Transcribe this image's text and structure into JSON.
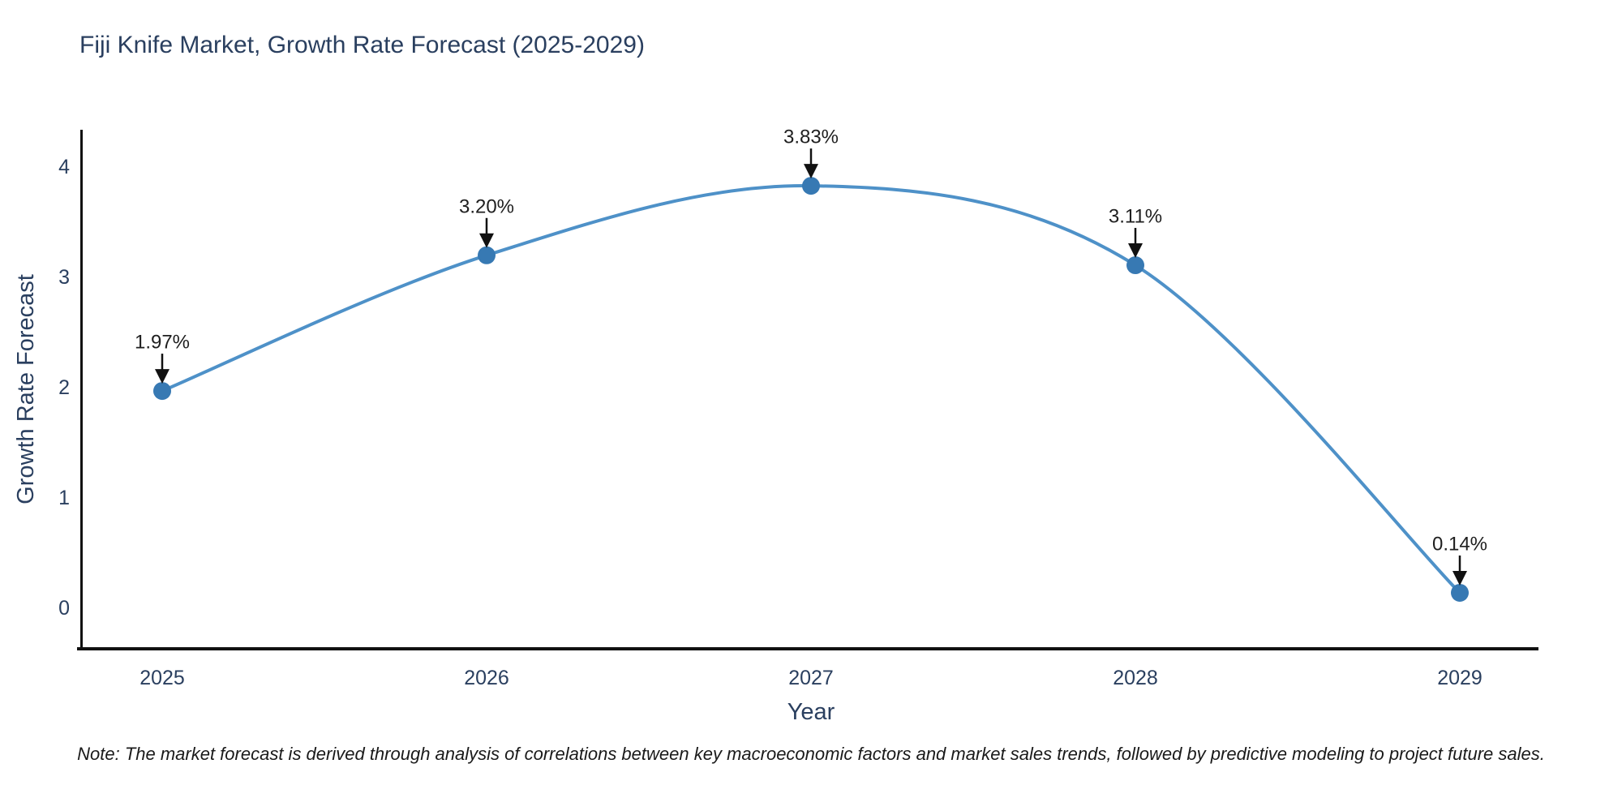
{
  "chart_data": {
    "type": "line",
    "title": "Fiji Knife Market, Growth Rate Forecast (2025-2029)",
    "xlabel": "Year",
    "ylabel": "Growth Rate Forecast",
    "x": [
      2025,
      2026,
      2027,
      2028,
      2029
    ],
    "y": [
      1.97,
      3.2,
      3.83,
      3.11,
      0.14
    ],
    "point_labels": [
      "1.97%",
      "3.20%",
      "3.83%",
      "3.11%",
      "0.14%"
    ],
    "yticks": [
      0,
      1,
      2,
      3,
      4
    ],
    "xticks": [
      2025,
      2026,
      2027,
      2028,
      2029
    ],
    "ylim": [
      -0.38,
      4.34
    ],
    "xlim": [
      2024.74,
      2029.24
    ],
    "line_shape": "spline",
    "grid": false,
    "legend": "none",
    "note": "Note: The market forecast is derived through analysis of correlations between key macroeconomic factors and market sales trends, followed by predictive modeling to project future sales.",
    "colors": {
      "line": "#4e91c8",
      "marker": "#3779b3",
      "axis": "#111111",
      "tick_text": "#2a3f5f",
      "annotation_text": "#1f1f1f",
      "annotation_arrow": "#111111",
      "background": "#ffffff"
    }
  }
}
